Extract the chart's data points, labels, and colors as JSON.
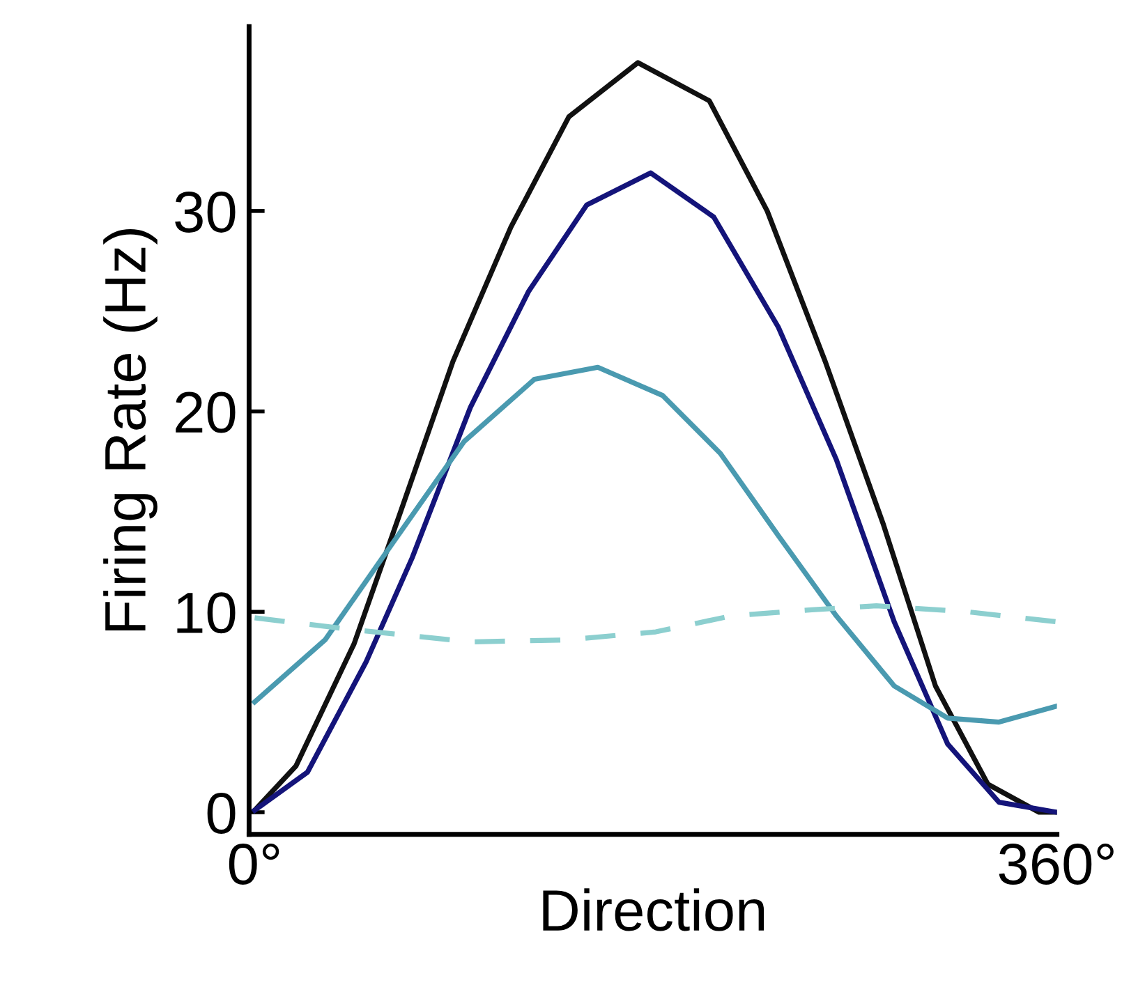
{
  "chart_data": {
    "type": "line",
    "xlabel": "Direction",
    "ylabel": "Firing Rate (Hz)",
    "xlim": [
      -2.5,
      360
    ],
    "ylim": [
      -1.1,
      39.2
    ],
    "xticks": [
      {
        "value": 0,
        "label": "0°"
      },
      {
        "value": 360,
        "label": "360°"
      }
    ],
    "yticks": [
      0,
      10,
      20,
      30
    ],
    "grid": false,
    "legend": false,
    "marker": "none",
    "series": [
      {
        "color": "#111111",
        "line_style": "solid",
        "x": [
          0,
          18.5,
          44.6,
          65.5,
          89,
          115,
          141,
          172,
          204,
          230,
          256,
          282,
          305.5,
          329,
          352,
          360
        ],
        "values": [
          0.1,
          2.3,
          8.4,
          15.0,
          22.5,
          29.2,
          34.7,
          37.4,
          35.5,
          30.0,
          22.5,
          14.4,
          6.3,
          1.4,
          0,
          0
        ]
      },
      {
        "color": "#14147a",
        "line_style": "solid",
        "x": [
          0,
          23.7,
          50,
          70.7,
          96.8,
          123,
          149,
          177.7,
          206,
          235,
          261,
          287,
          311,
          334,
          360
        ],
        "values": [
          0.1,
          2.0,
          7.5,
          12.7,
          20.2,
          26.0,
          30.3,
          31.9,
          29.7,
          24.2,
          17.6,
          9.5,
          3.4,
          0.5,
          0
        ]
      },
      {
        "color": "#4a9ab0",
        "line_style": "solid",
        "x": [
          0,
          31.6,
          63,
          94,
          125.5,
          154,
          183,
          209,
          235,
          261,
          287,
          311,
          334,
          360
        ],
        "values": [
          5.5,
          8.6,
          13.6,
          18.5,
          21.6,
          22.2,
          20.8,
          17.9,
          13.8,
          9.8,
          6.3,
          4.7,
          4.5,
          5.3
        ]
      },
      {
        "color": "#8ccfcf",
        "line_style": "dashed",
        "x": [
          0,
          45,
          97,
          140,
          180,
          214,
          250,
          279,
          320,
          360
        ],
        "values": [
          9.7,
          9.1,
          8.5,
          8.6,
          9.0,
          9.8,
          10.1,
          10.3,
          10.0,
          9.5
        ]
      }
    ]
  }
}
